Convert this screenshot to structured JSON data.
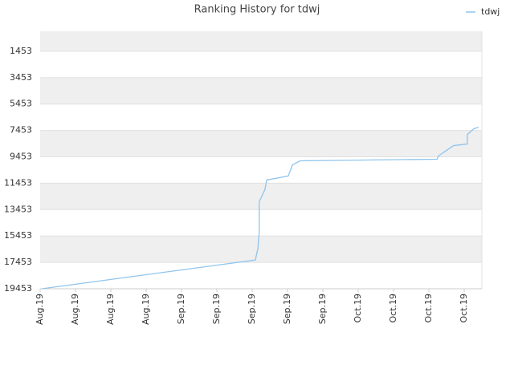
{
  "chart_data": {
    "type": "line",
    "title": "Ranking History for tdwj",
    "x": [
      0.05,
      6.09,
      6.16,
      6.2,
      6.2,
      6.36,
      6.41,
      7.02,
      7.14,
      7.36,
      9.27,
      11.23,
      11.27,
      11.43,
      11.7,
      12.09,
      12.09,
      12.27,
      12.41
    ],
    "series": [
      {
        "name": "tdwj",
        "color": "#90c4ec",
        "values": [
          19453,
          17271,
          16423,
          15150,
          12847,
          11938,
          11211,
          10908,
          10059,
          9756,
          9695,
          9635,
          9392,
          9089,
          8604,
          8483,
          7756,
          7332,
          7211
        ]
      }
    ],
    "xlim": [
      0,
      12.5
    ],
    "xticks": [
      {
        "value": 0,
        "label": "Aug.19"
      },
      {
        "value": 1,
        "label": "Aug.19"
      },
      {
        "value": 2,
        "label": "Aug.19"
      },
      {
        "value": 3,
        "label": "Aug.19"
      },
      {
        "value": 4,
        "label": "Sep.19"
      },
      {
        "value": 5,
        "label": "Sep.19"
      },
      {
        "value": 6,
        "label": "Sep.19"
      },
      {
        "value": 7,
        "label": "Sep.19"
      },
      {
        "value": 8,
        "label": "Sep.19"
      },
      {
        "value": 9,
        "label": "Oct.19"
      },
      {
        "value": 10,
        "label": "Oct.19"
      },
      {
        "value": 11,
        "label": "Oct.19"
      },
      {
        "value": 12,
        "label": "Oct.19"
      }
    ],
    "ylim": [
      19453,
      -62
    ],
    "yticks": [
      1453,
      3453,
      5453,
      7453,
      9453,
      11453,
      13453,
      15453,
      17453,
      19453
    ],
    "grid": true,
    "legend": "upper right"
  }
}
